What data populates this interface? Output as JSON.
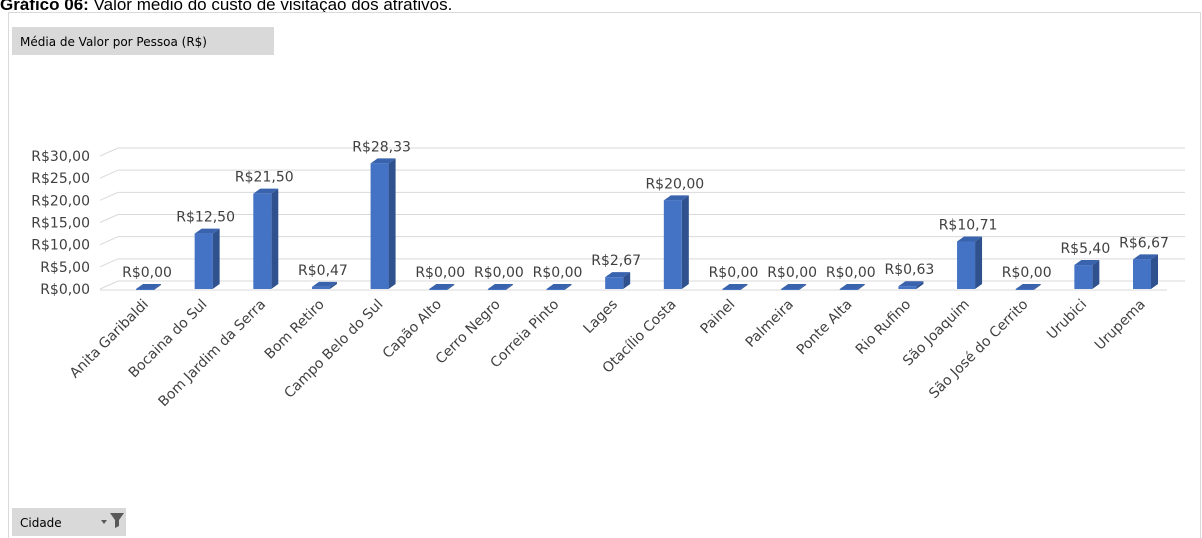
{
  "caption": {
    "label": "Gráfico 06:",
    "text": "Valor médio do custo de visitação dos atrativos."
  },
  "field_buttons": {
    "value": "Média de Valor por Pessoa (R$)",
    "axis": "Cidade"
  },
  "chart_data": {
    "type": "bar3d",
    "categories": [
      "Anita Garibaldi",
      "Bocaina do Sul",
      "Bom Jardim da Serra",
      "Bom Retiro",
      "Campo Belo do Sul",
      "Capão Alto",
      "Cerro Negro",
      "Correia Pinto",
      "Lages",
      "Otacílio Costa",
      "Painel",
      "Palmeira",
      "Ponte Alta",
      "Rio Rufino",
      "São Joaquim",
      "São José do Cerrito",
      "Urubici",
      "Urupema"
    ],
    "values": [
      0,
      12.5,
      21.5,
      0.47,
      28.33,
      0,
      0,
      0,
      2.67,
      20,
      0,
      0,
      0,
      0.63,
      10.71,
      0,
      5.4,
      6.67
    ],
    "value_labels": [
      "R$0,00",
      "R$12,50",
      "R$21,50",
      "R$0,47",
      "R$28,33",
      "R$0,00",
      "R$0,00",
      "R$0,00",
      "R$2,67",
      "R$20,00",
      "R$0,00",
      "R$0,00",
      "R$0,00",
      "R$0,63",
      "R$10,71",
      "R$0,00",
      "R$5,40",
      "R$6,67"
    ],
    "color": "#4472c4",
    "ylim": [
      0,
      30
    ],
    "yticks": [
      {
        "value": 0,
        "label": "R$0,00"
      },
      {
        "value": 5,
        "label": "R$5,00"
      },
      {
        "value": 10,
        "label": "R$10,00"
      },
      {
        "value": 15,
        "label": "R$15,00"
      },
      {
        "value": 20,
        "label": "R$20,00"
      },
      {
        "value": 25,
        "label": "R$25,00"
      },
      {
        "value": 30,
        "label": "R$30,00"
      }
    ],
    "grid": true
  }
}
